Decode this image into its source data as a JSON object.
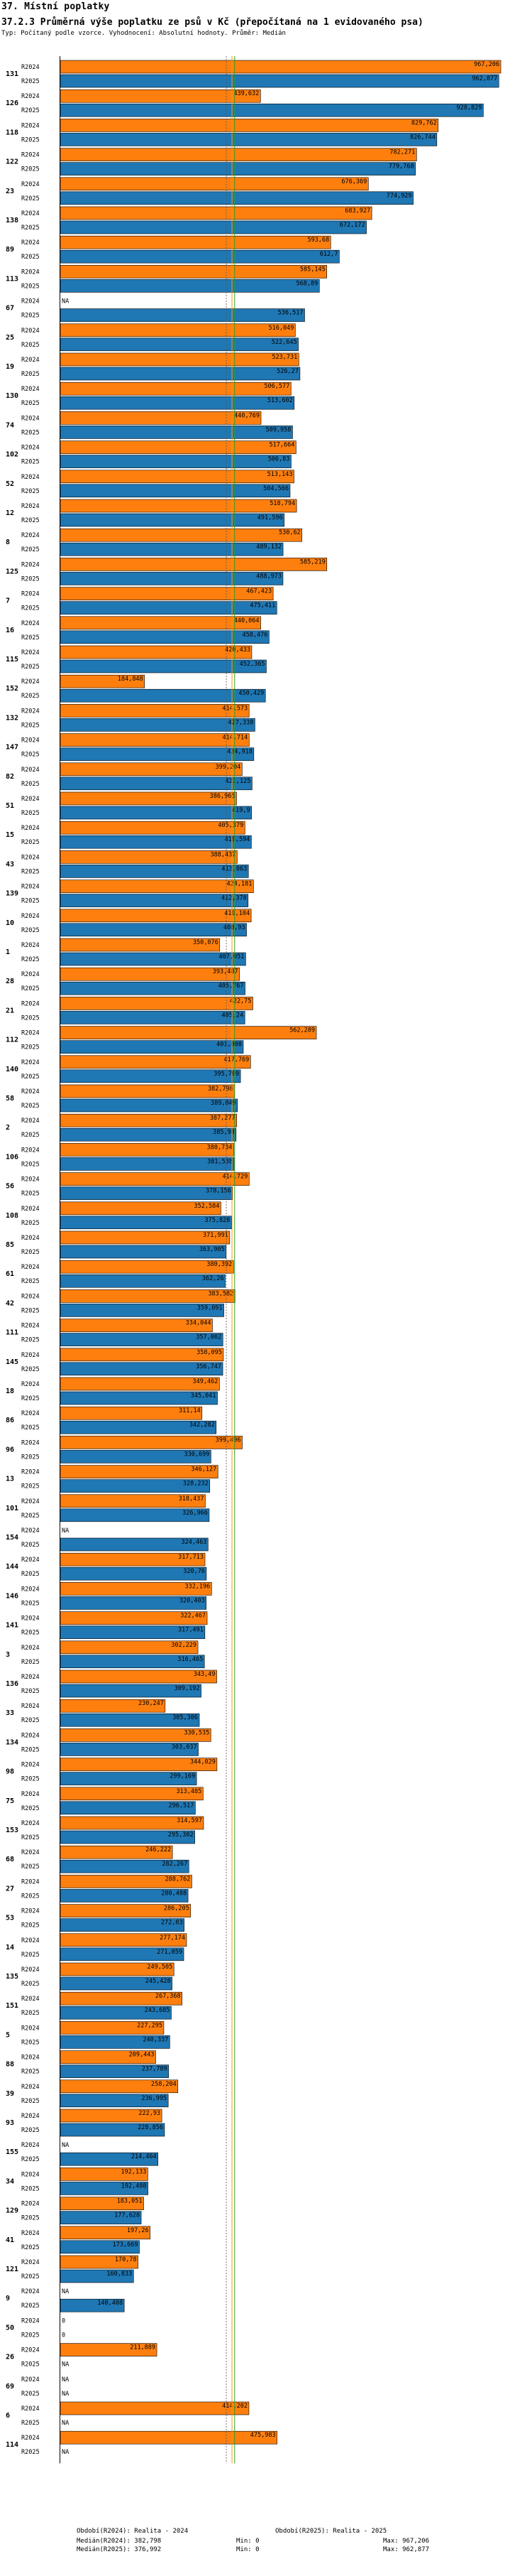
{
  "header": {
    "title": "37. Místní poplatky",
    "subtitle": "37.2.3 Průměrná výše poplatku ze psů v Kč (přepočítaná na 1 evidovaného psa)",
    "description": "Typ: Počítaný podle vzorce. Vyhodnocení: Absolutní hodnoty. Průměr: Medián"
  },
  "colors": {
    "r2024": "#ff7f0e",
    "r2025": "#1f77b4",
    "median2024": "#2ca02c",
    "median2025": "#ff9900",
    "guide": "#000000"
  },
  "chart_data": {
    "type": "bar",
    "orientation": "horizontal",
    "series_names": [
      "R2024",
      "R2025"
    ],
    "xlim": [
      0,
      967.206
    ],
    "median_values": [
      382.798,
      376.992
    ],
    "items": [
      {
        "code": "131",
        "v": [
          967.206,
          962.877
        ],
        "l": [
          "967,206",
          "962,877"
        ]
      },
      {
        "code": "126",
        "v": [
          439.632,
          928.829
        ],
        "l": [
          "439,632",
          "928,829"
        ]
      },
      {
        "code": "118",
        "v": [
          829.762,
          826.744
        ],
        "l": [
          "829,762",
          "826,744"
        ]
      },
      {
        "code": "122",
        "v": [
          782.271,
          779.768
        ],
        "l": [
          "782,271",
          "779,768"
        ]
      },
      {
        "code": "23",
        "v": [
          676.369,
          774.929
        ],
        "l": [
          "676,369",
          "774,929"
        ]
      },
      {
        "code": "138",
        "v": [
          683.927,
          672.172
        ],
        "l": [
          "683,927",
          "672,172"
        ]
      },
      {
        "code": "89",
        "v": [
          593.68,
          612.7
        ],
        "l": [
          "593,68",
          "612,7"
        ]
      },
      {
        "code": "113",
        "v": [
          585.145,
          568.89
        ],
        "l": [
          "585,145",
          "568,89"
        ]
      },
      {
        "code": "67",
        "v": [
          null,
          536.517
        ],
        "l": [
          "NA",
          "536,517"
        ]
      },
      {
        "code": "25",
        "v": [
          516.049,
          522.645
        ],
        "l": [
          "516,049",
          "522,645"
        ]
      },
      {
        "code": "19",
        "v": [
          523.731,
          526.27
        ],
        "l": [
          "523,731",
          "526,27"
        ]
      },
      {
        "code": "130",
        "v": [
          506.577,
          513.602
        ],
        "l": [
          "506,577",
          "513,602"
        ]
      },
      {
        "code": "74",
        "v": [
          440.769,
          509.958
        ],
        "l": [
          "440,769",
          "509,958"
        ]
      },
      {
        "code": "102",
        "v": [
          517.664,
          506.83
        ],
        "l": [
          "517,664",
          "506,83"
        ]
      },
      {
        "code": "52",
        "v": [
          513.143,
          504.566
        ],
        "l": [
          "513,143",
          "504,566"
        ]
      },
      {
        "code": "12",
        "v": [
          518.794,
          491.596
        ],
        "l": [
          "518,794",
          "491,596"
        ]
      },
      {
        "code": "8",
        "v": [
          530.62,
          489.132
        ],
        "l": [
          "530,62",
          "489,132"
        ]
      },
      {
        "code": "125",
        "v": [
          585.219,
          488.973
        ],
        "l": [
          "585,219",
          "488,973"
        ]
      },
      {
        "code": "7",
        "v": [
          467.423,
          475.411
        ],
        "l": [
          "467,423",
          "475,411"
        ]
      },
      {
        "code": "16",
        "v": [
          440.064,
          458.476
        ],
        "l": [
          "440,064",
          "458,476"
        ]
      },
      {
        "code": "115",
        "v": [
          420.433,
          452.365
        ],
        "l": [
          "420,433",
          "452,365"
        ]
      },
      {
        "code": "152",
        "v": [
          184.848,
          450.429
        ],
        "l": [
          "184,848",
          "450,429"
        ]
      },
      {
        "code": "132",
        "v": [
          414.573,
          427.338
        ],
        "l": [
          "414,573",
          "427,338"
        ]
      },
      {
        "code": "147",
        "v": [
          414.714,
          424.918
        ],
        "l": [
          "414,714",
          "424,918"
        ]
      },
      {
        "code": "82",
        "v": [
          399.204,
          421.125
        ],
        "l": [
          "399,204",
          "421,125"
        ]
      },
      {
        "code": "51",
        "v": [
          386.965,
          419.9
        ],
        "l": [
          "386,965",
          "419,9"
        ]
      },
      {
        "code": "15",
        "v": [
          405.379,
          419.594
        ],
        "l": [
          "405,379",
          "419,594"
        ]
      },
      {
        "code": "43",
        "v": [
          388.437,
          413.063
        ],
        "l": [
          "388,437",
          "413,063"
        ]
      },
      {
        "code": "139",
        "v": [
          424.181,
          412.378
        ],
        "l": [
          "424,181",
          "412,378"
        ]
      },
      {
        "code": "10",
        "v": [
          419.104,
          408.93
        ],
        "l": [
          "419,104",
          "408,93"
        ]
      },
      {
        "code": "1",
        "v": [
          350.076,
          407.051
        ],
        "l": [
          "350,076",
          "407,051"
        ]
      },
      {
        "code": "28",
        "v": [
          393.487,
          405.767
        ],
        "l": [
          "393,487",
          "405,767"
        ]
      },
      {
        "code": "21",
        "v": [
          422.75,
          405.24
        ],
        "l": [
          "422,75",
          "405,24"
        ]
      },
      {
        "code": "112",
        "v": [
          562.289,
          401.808
        ],
        "l": [
          "562,289",
          "401,808"
        ]
      },
      {
        "code": "140",
        "v": [
          417.769,
          395.709
        ],
        "l": [
          "417,769",
          "395,709"
        ]
      },
      {
        "code": "58",
        "v": [
          382.798,
          389.049
        ],
        "l": [
          "382,798",
          "389,049"
        ]
      },
      {
        "code": "2",
        "v": [
          387.277,
          385.98
        ],
        "l": [
          "387,277",
          "385,98"
        ]
      },
      {
        "code": "106",
        "v": [
          380.734,
          381.538
        ],
        "l": [
          "380,734",
          "381,538"
        ]
      },
      {
        "code": "56",
        "v": [
          414.729,
          378.156
        ],
        "l": [
          "414,729",
          "378,156"
        ]
      },
      {
        "code": "108",
        "v": [
          352.584,
          375.828
        ],
        "l": [
          "352,584",
          "375,828"
        ]
      },
      {
        "code": "85",
        "v": [
          371.991,
          363.905
        ],
        "l": [
          "371,991",
          "363,905"
        ]
      },
      {
        "code": "61",
        "v": [
          380.392,
          362.26
        ],
        "l": [
          "380,392",
          "362,26"
        ]
      },
      {
        "code": "42",
        "v": [
          383.582,
          359.091
        ],
        "l": [
          "383,582",
          "359,091"
        ]
      },
      {
        "code": "111",
        "v": [
          334.044,
          357.002
        ],
        "l": [
          "334,044",
          "357,002"
        ]
      },
      {
        "code": "145",
        "v": [
          358.095,
          356.747
        ],
        "l": [
          "358,095",
          "356,747"
        ]
      },
      {
        "code": "18",
        "v": [
          349.462,
          345.041
        ],
        "l": [
          "349,462",
          "345,041"
        ]
      },
      {
        "code": "86",
        "v": [
          311.14,
          342.282
        ],
        "l": [
          "311,14",
          "342,282"
        ]
      },
      {
        "code": "96",
        "v": [
          399.496,
          330.699
        ],
        "l": [
          "399,496",
          "330,699"
        ]
      },
      {
        "code": "13",
        "v": [
          346.127,
          328.232
        ],
        "l": [
          "346,127",
          "328,232"
        ]
      },
      {
        "code": "101",
        "v": [
          318.437,
          326.966
        ],
        "l": [
          "318,437",
          "326,966"
        ]
      },
      {
        "code": "154",
        "v": [
          null,
          324.463
        ],
        "l": [
          "NA",
          "324,463"
        ]
      },
      {
        "code": "144",
        "v": [
          317.713,
          320.76
        ],
        "l": [
          "317,713",
          "320,76"
        ]
      },
      {
        "code": "146",
        "v": [
          332.196,
          320.403
        ],
        "l": [
          "332,196",
          "320,403"
        ]
      },
      {
        "code": "141",
        "v": [
          322.467,
          317.491
        ],
        "l": [
          "322,467",
          "317,491"
        ]
      },
      {
        "code": "3",
        "v": [
          302.229,
          316.465
        ],
        "l": [
          "302,229",
          "316,465"
        ]
      },
      {
        "code": "136",
        "v": [
          343.49,
          309.192
        ],
        "l": [
          "343,49",
          "309,192"
        ]
      },
      {
        "code": "33",
        "v": [
          230.247,
          305.306
        ],
        "l": [
          "230,247",
          "305,306"
        ]
      },
      {
        "code": "134",
        "v": [
          330.535,
          303.037
        ],
        "l": [
          "330,535",
          "303,037"
        ]
      },
      {
        "code": "98",
        "v": [
          344.029,
          299.169
        ],
        "l": [
          "344,029",
          "299,169"
        ]
      },
      {
        "code": "75",
        "v": [
          313.485,
          296.517
        ],
        "l": [
          "313,485",
          "296,517"
        ]
      },
      {
        "code": "153",
        "v": [
          314.597,
          295.302
        ],
        "l": [
          "314,597",
          "295,302"
        ]
      },
      {
        "code": "68",
        "v": [
          246.222,
          282.267
        ],
        "l": [
          "246,222",
          "282,267"
        ]
      },
      {
        "code": "27",
        "v": [
          288.762,
          280.488
        ],
        "l": [
          "288,762",
          "280,488"
        ]
      },
      {
        "code": "53",
        "v": [
          286.205,
          272.03
        ],
        "l": [
          "286,205",
          "272,03"
        ]
      },
      {
        "code": "14",
        "v": [
          277.174,
          271.059
        ],
        "l": [
          "277,174",
          "271,059"
        ]
      },
      {
        "code": "135",
        "v": [
          249.505,
          245.428
        ],
        "l": [
          "249,505",
          "245,428"
        ]
      },
      {
        "code": "151",
        "v": [
          267.368,
          243.685
        ],
        "l": [
          "267,368",
          "243,685"
        ]
      },
      {
        "code": "5",
        "v": [
          227.295,
          240.337
        ],
        "l": [
          "227,295",
          "240,337"
        ]
      },
      {
        "code": "88",
        "v": [
          209.443,
          237.789
        ],
        "l": [
          "209,443",
          "237,789"
        ]
      },
      {
        "code": "39",
        "v": [
          258.204,
          236.995
        ],
        "l": [
          "258,204",
          "236,995"
        ]
      },
      {
        "code": "93",
        "v": [
          222.93,
          228.856
        ],
        "l": [
          "222,93",
          "228,856"
        ]
      },
      {
        "code": "155",
        "v": [
          null,
          214.464
        ],
        "l": [
          "NA",
          "214,464"
        ]
      },
      {
        "code": "34",
        "v": [
          192.133,
          192.488
        ],
        "l": [
          "192,133",
          "192,488"
        ]
      },
      {
        "code": "129",
        "v": [
          183.051,
          177.628
        ],
        "l": [
          "183,051",
          "177,628"
        ]
      },
      {
        "code": "41",
        "v": [
          197.26,
          173.669
        ],
        "l": [
          "197,26",
          "173,669"
        ]
      },
      {
        "code": "121",
        "v": [
          170.78,
          160.833
        ],
        "l": [
          "170,78",
          "160,833"
        ]
      },
      {
        "code": "9",
        "v": [
          null,
          140.408
        ],
        "l": [
          "NA",
          "140,408"
        ]
      },
      {
        "code": "50",
        "v": [
          0,
          0
        ],
        "l": [
          "0",
          "0"
        ]
      },
      {
        "code": "26",
        "v": [
          211.889,
          null
        ],
        "l": [
          "211,889",
          "NA"
        ]
      },
      {
        "code": "69",
        "v": [
          null,
          null
        ],
        "l": [
          "NA",
          "NA"
        ]
      },
      {
        "code": "6",
        "v": [
          414.202,
          null
        ],
        "l": [
          "414,202",
          "NA"
        ]
      },
      {
        "code": "114",
        "v": [
          475.983,
          null
        ],
        "l": [
          "475,983",
          "NA"
        ]
      }
    ]
  },
  "footer": {
    "left_title": "Období(R2024): Realita - 2024",
    "right_title": "Období(R2025): Realita - 2025",
    "median_2024": "Medián(R2024): 382,798",
    "min_2024": "Min: 0",
    "max_2024": "Max: 967,206",
    "median_2025": "Medián(R2025): 376,992",
    "min_2025": "Min: 0",
    "max_2025": "Max: 962,877"
  }
}
